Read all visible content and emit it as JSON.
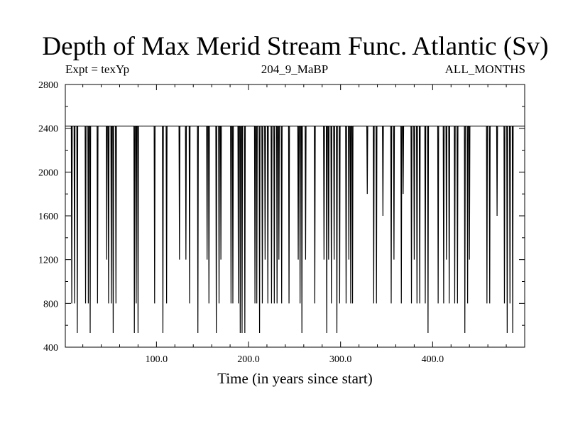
{
  "header": {
    "title": "Depth of Max Merid Stream Func. Atlantic (Sv)",
    "expt": "Expt = texYp",
    "run": "204_9_MaBP",
    "months": "ALL_MONTHS"
  },
  "chart_data": {
    "type": "line",
    "title": "Depth of Max Merid Stream Func. Atlantic (Sv)",
    "xlabel": "Time (in years since start)",
    "ylabel": "",
    "xlim": [
      1,
      500
    ],
    "ylim": [
      400,
      2800
    ],
    "x_ticks": [
      100,
      200,
      300,
      400
    ],
    "x_tick_labels": [
      "100.0",
      "200.0",
      "300.0",
      "400.0"
    ],
    "y_ticks": [
      400,
      800,
      1200,
      1600,
      2000,
      2400,
      2800
    ],
    "y_tick_labels": [
      "400",
      "800",
      "1200",
      "1600",
      "2000",
      "2400",
      "2800"
    ],
    "baseline": 2420,
    "grid": false,
    "series": [
      {
        "dips": [
          [
            8,
            800
          ],
          [
            11,
            800
          ],
          [
            14,
            530
          ],
          [
            19,
            2420
          ],
          [
            23,
            800
          ],
          [
            26,
            800
          ],
          [
            28,
            530
          ],
          [
            31,
            2420
          ],
          [
            36,
            800
          ],
          [
            38,
            2420
          ],
          [
            40,
            2420
          ],
          [
            46,
            1200
          ],
          [
            48,
            800
          ],
          [
            51,
            800
          ],
          [
            53,
            530
          ],
          [
            56,
            800
          ],
          [
            61,
            2420
          ],
          [
            76,
            530
          ],
          [
            78,
            800
          ],
          [
            80,
            530
          ],
          [
            83,
            2420
          ],
          [
            93,
            2420
          ],
          [
            98,
            800
          ],
          [
            102,
            2420
          ],
          [
            107,
            530
          ],
          [
            111,
            800
          ],
          [
            113,
            2420
          ],
          [
            125,
            1200
          ],
          [
            130,
            2420
          ],
          [
            132,
            1200
          ],
          [
            136,
            800
          ],
          [
            138,
            2420
          ],
          [
            145,
            530
          ],
          [
            155,
            1200
          ],
          [
            157,
            800
          ],
          [
            162,
            2420
          ],
          [
            165,
            530
          ],
          [
            168,
            800
          ],
          [
            170,
            1200
          ],
          [
            175,
            2420
          ],
          [
            181,
            800
          ],
          [
            183,
            800
          ],
          [
            186,
            2420
          ],
          [
            189,
            800
          ],
          [
            191,
            530
          ],
          [
            193,
            530
          ],
          [
            196,
            530
          ],
          [
            199,
            2420
          ],
          [
            207,
            800
          ],
          [
            209,
            800
          ],
          [
            212,
            530
          ],
          [
            215,
            800
          ],
          [
            218,
            1200
          ],
          [
            221,
            800
          ],
          [
            225,
            800
          ],
          [
            228,
            800
          ],
          [
            231,
            800
          ],
          [
            233,
            1200
          ],
          [
            236,
            800
          ],
          [
            239,
            2420
          ],
          [
            244,
            800
          ],
          [
            254,
            1200
          ],
          [
            256,
            800
          ],
          [
            258,
            530
          ],
          [
            262,
            1200
          ],
          [
            264,
            2420
          ],
          [
            272,
            800
          ],
          [
            275,
            2420
          ],
          [
            282,
            1200
          ],
          [
            285,
            530
          ],
          [
            287,
            1200
          ],
          [
            290,
            800
          ],
          [
            293,
            1200
          ],
          [
            296,
            530
          ],
          [
            299,
            800
          ],
          [
            302,
            2420
          ],
          [
            306,
            800
          ],
          [
            309,
            1200
          ],
          [
            311,
            800
          ],
          [
            313,
            800
          ],
          [
            316,
            2420
          ],
          [
            326,
            2420
          ],
          [
            329,
            1800
          ],
          [
            334,
            2420
          ],
          [
            336,
            800
          ],
          [
            339,
            800
          ],
          [
            342,
            2420
          ],
          [
            346,
            1600
          ],
          [
            350,
            2420
          ],
          [
            355,
            800
          ],
          [
            358,
            1200
          ],
          [
            362,
            2420
          ],
          [
            366,
            800
          ],
          [
            368,
            1800
          ],
          [
            372,
            2420
          ],
          [
            377,
            800
          ],
          [
            380,
            1200
          ],
          [
            383,
            800
          ],
          [
            386,
            800
          ],
          [
            389,
            2420
          ],
          [
            392,
            800
          ],
          [
            395,
            530
          ],
          [
            398,
            2420
          ],
          [
            403,
            2420
          ],
          [
            406,
            800
          ],
          [
            409,
            2420
          ],
          [
            412,
            800
          ],
          [
            415,
            1200
          ],
          [
            418,
            800
          ],
          [
            421,
            2420
          ],
          [
            424,
            800
          ],
          [
            427,
            800
          ],
          [
            430,
            2420
          ],
          [
            435,
            530
          ],
          [
            438,
            800
          ],
          [
            440,
            1200
          ],
          [
            443,
            2420
          ],
          [
            459,
            800
          ],
          [
            462,
            800
          ],
          [
            465,
            2420
          ],
          [
            470,
            1600
          ],
          [
            473,
            2420
          ],
          [
            478,
            800
          ],
          [
            481,
            530
          ],
          [
            484,
            800
          ],
          [
            487,
            530
          ],
          [
            490,
            2420
          ]
        ]
      }
    ]
  }
}
